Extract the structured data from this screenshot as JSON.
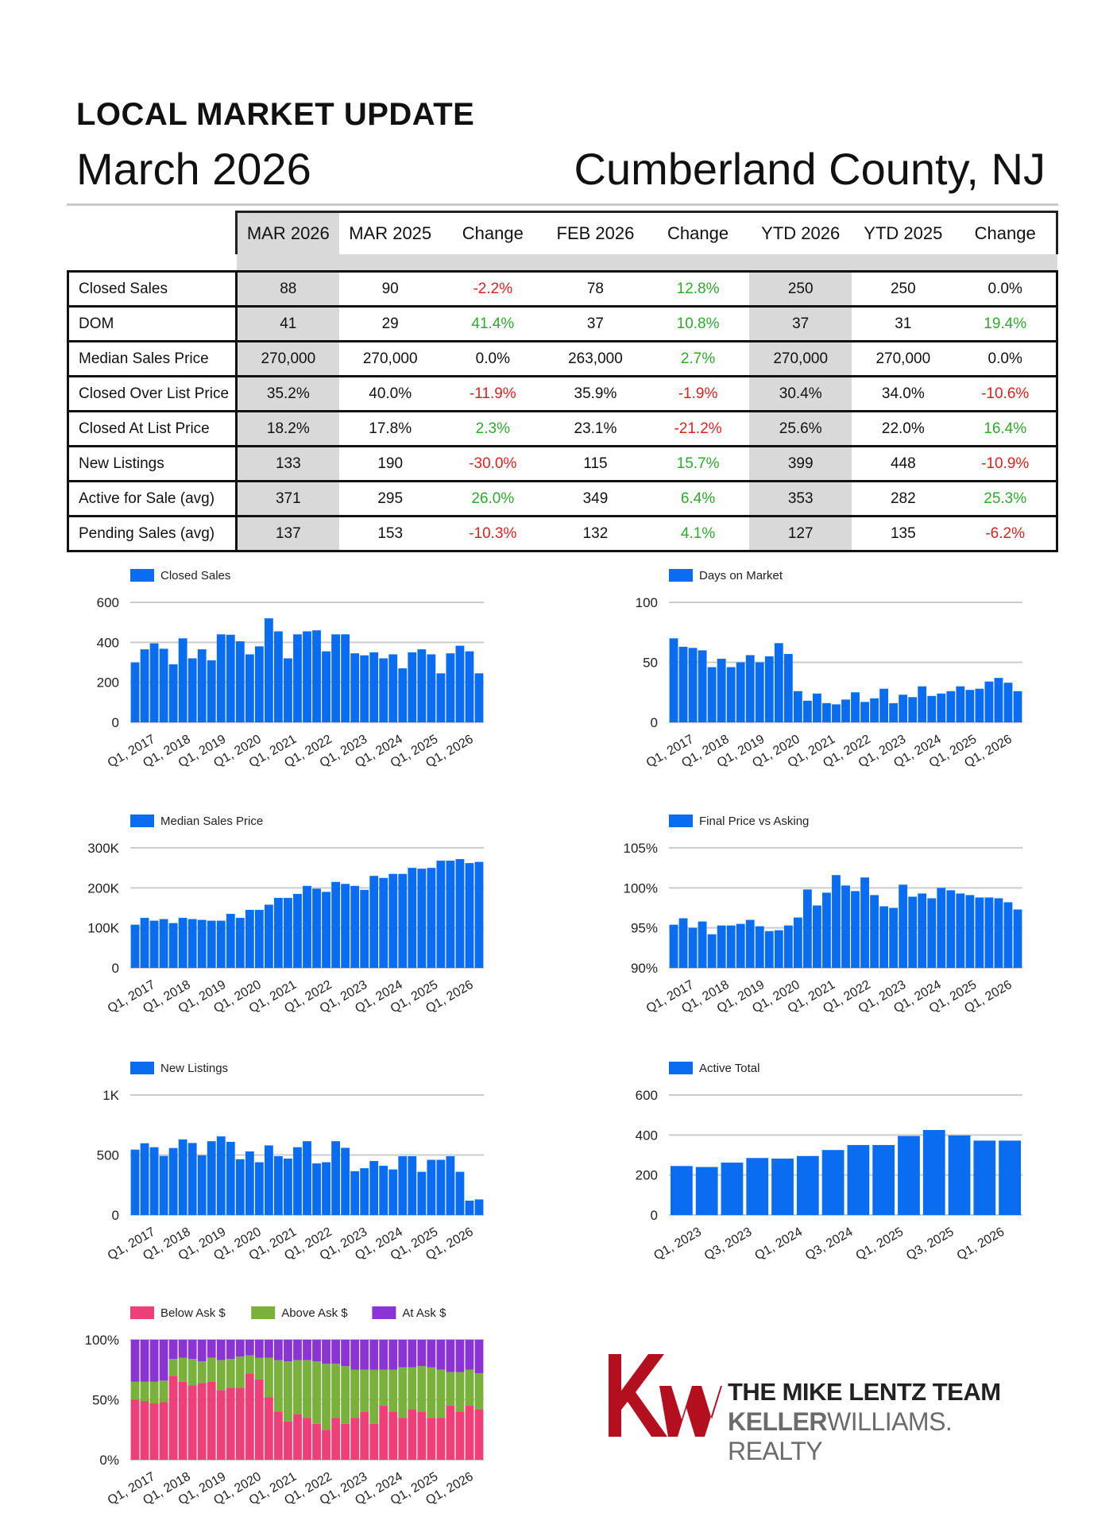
{
  "header": {
    "kicker": "LOCAL MARKET UPDATE",
    "month": "March 2026",
    "county": "Cumberland County, NJ"
  },
  "table": {
    "columns": [
      "MAR 2026",
      "MAR 2025",
      "Change",
      "FEB 2026",
      "Change",
      "YTD 2026",
      "YTD 2025",
      "Change"
    ],
    "rows": [
      {
        "label": "Closed Sales",
        "cells": [
          "88",
          "90",
          "-2.2%",
          "78",
          "12.8%",
          "250",
          "250",
          "0.0%"
        ]
      },
      {
        "label": "DOM",
        "cells": [
          "41",
          "29",
          "41.4%",
          "37",
          "10.8%",
          "37",
          "31",
          "19.4%"
        ]
      },
      {
        "label": "Median Sales Price",
        "cells": [
          "270,000",
          "270,000",
          "0.0%",
          "263,000",
          "2.7%",
          "270,000",
          "270,000",
          "0.0%"
        ]
      },
      {
        "label": "Closed Over List Price",
        "cells": [
          "35.2%",
          "40.0%",
          "-11.9%",
          "35.9%",
          "-1.9%",
          "30.4%",
          "34.0%",
          "-10.6%"
        ]
      },
      {
        "label": "Closed At List Price",
        "cells": [
          "18.2%",
          "17.8%",
          "2.3%",
          "23.1%",
          "-21.2%",
          "25.6%",
          "22.0%",
          "16.4%"
        ]
      },
      {
        "label": "New Listings",
        "cells": [
          "133",
          "190",
          "-30.0%",
          "115",
          "15.7%",
          "399",
          "448",
          "-10.9%"
        ]
      },
      {
        "label": "Active for Sale (avg)",
        "cells": [
          "371",
          "295",
          "26.0%",
          "349",
          "6.4%",
          "353",
          "282",
          "25.3%"
        ]
      },
      {
        "label": "Pending Sales (avg)",
        "cells": [
          "137",
          "153",
          "-10.3%",
          "132",
          "4.1%",
          "127",
          "135",
          "-6.2%"
        ]
      }
    ],
    "colors": {
      "positive": "#2fa82f",
      "negative": "#e02020",
      "neutral": "#111111",
      "shade": "#d9d9d9"
    }
  },
  "chart_data": [
    {
      "type": "bar",
      "legend": "Closed Sales",
      "color": "#0a6cf0",
      "x_labels": [
        "Q1, 2017",
        "Q1, 2018",
        "Q1, 2019",
        "Q1, 2020",
        "Q1, 2021",
        "Q1, 2022",
        "Q1, 2023",
        "Q1, 2024",
        "Q1, 2025",
        "Q1, 2026"
      ],
      "y_ticks": [
        {
          "v": 0,
          "t": "0"
        },
        {
          "v": 200,
          "t": "200"
        },
        {
          "v": 400,
          "t": "400"
        },
        {
          "v": 600,
          "t": "600"
        }
      ],
      "ylim": [
        0,
        600
      ],
      "values": [
        300,
        365,
        395,
        368,
        290,
        420,
        320,
        365,
        310,
        440,
        438,
        405,
        340,
        380,
        520,
        455,
        320,
        440,
        455,
        460,
        355,
        440,
        440,
        345,
        335,
        350,
        320,
        340,
        270,
        350,
        365,
        340,
        245,
        345,
        383,
        355,
        245
      ]
    },
    {
      "type": "bar",
      "legend": "Days on Market",
      "color": "#0a6cf0",
      "x_labels": [
        "Q1, 2017",
        "Q1, 2018",
        "Q1, 2019",
        "Q1, 2020",
        "Q1, 2021",
        "Q1, 2022",
        "Q1, 2023",
        "Q1, 2024",
        "Q1, 2025",
        "Q1, 2026"
      ],
      "y_ticks": [
        {
          "v": 0,
          "t": "0"
        },
        {
          "v": 50,
          "t": "50"
        },
        {
          "v": 100,
          "t": "100"
        }
      ],
      "ylim": [
        0,
        100
      ],
      "values": [
        70,
        63,
        62,
        60,
        46,
        53,
        46,
        50,
        56,
        50,
        55,
        66,
        57,
        26,
        18,
        24,
        16,
        15,
        19,
        25,
        17,
        20,
        28,
        16,
        23,
        21,
        30,
        22,
        24,
        26,
        30,
        27,
        28,
        34,
        37,
        33,
        26
      ]
    },
    {
      "type": "bar",
      "legend": "Median Sales Price",
      "color": "#0a6cf0",
      "x_labels": [
        "Q1, 2017",
        "Q1, 2018",
        "Q1, 2019",
        "Q1, 2020",
        "Q1, 2021",
        "Q1, 2022",
        "Q1, 2023",
        "Q1, 2024",
        "Q1, 2025",
        "Q1, 2026"
      ],
      "y_ticks": [
        {
          "v": 0,
          "t": "0"
        },
        {
          "v": 100,
          "t": "100K"
        },
        {
          "v": 200,
          "t": "200K"
        },
        {
          "v": 300,
          "t": "300K"
        }
      ],
      "ylim": [
        0,
        300
      ],
      "values": [
        108,
        125,
        118,
        122,
        112,
        125,
        122,
        120,
        118,
        118,
        135,
        125,
        145,
        145,
        158,
        175,
        175,
        185,
        205,
        198,
        190,
        215,
        210,
        205,
        195,
        230,
        225,
        235,
        235,
        250,
        248,
        250,
        268,
        268,
        272,
        262,
        265
      ]
    },
    {
      "type": "bar",
      "legend": "Final Price vs Asking",
      "color": "#0a6cf0",
      "x_labels": [
        "Q1, 2017",
        "Q1, 2018",
        "Q1, 2019",
        "Q1, 2020",
        "Q1, 2021",
        "Q1, 2022",
        "Q1, 2023",
        "Q1, 2024",
        "Q1, 2025",
        "Q1, 2026"
      ],
      "y_ticks": [
        {
          "v": 90,
          "t": "90%"
        },
        {
          "v": 95,
          "t": "95%"
        },
        {
          "v": 100,
          "t": "100%"
        },
        {
          "v": 105,
          "t": "105%"
        }
      ],
      "ylim": [
        90,
        105
      ],
      "values": [
        95.4,
        96.2,
        95.0,
        95.8,
        94.2,
        95.3,
        95.3,
        95.5,
        96.0,
        95.2,
        94.6,
        94.7,
        95.3,
        96.3,
        99.8,
        97.8,
        99.4,
        101.6,
        100.3,
        99.6,
        101.3,
        99.1,
        97.7,
        97.5,
        100.4,
        98.9,
        99.3,
        98.7,
        100.0,
        99.7,
        99.3,
        99.1,
        98.8,
        98.8,
        98.7,
        98.2,
        97.3
      ]
    },
    {
      "type": "bar",
      "legend": "New Listings",
      "color": "#0a6cf0",
      "x_labels": [
        "Q1, 2017",
        "Q1, 2018",
        "Q1, 2019",
        "Q1, 2020",
        "Q1, 2021",
        "Q1, 2022",
        "Q1, 2023",
        "Q1, 2024",
        "Q1, 2025",
        "Q1, 2026"
      ],
      "y_ticks": [
        {
          "v": 0,
          "t": "0"
        },
        {
          "v": 500,
          "t": "500"
        },
        {
          "v": 1000,
          "t": "1K"
        }
      ],
      "ylim": [
        0,
        1000
      ],
      "values": [
        545,
        598,
        565,
        492,
        558,
        630,
        600,
        498,
        615,
        655,
        610,
        465,
        530,
        440,
        580,
        490,
        470,
        565,
        615,
        430,
        440,
        615,
        560,
        365,
        390,
        450,
        410,
        380,
        490,
        490,
        360,
        460,
        460,
        490,
        360,
        120,
        130
      ]
    },
    {
      "type": "bar",
      "legend": "Active Total",
      "color": "#0a6cf0",
      "x_labels": [
        "Q1, 2023",
        "Q3, 2023",
        "Q1, 2024",
        "Q3, 2024",
        "Q1, 2025",
        "Q3, 2025",
        "Q1, 2026"
      ],
      "y_ticks": [
        {
          "v": 0,
          "t": "0"
        },
        {
          "v": 200,
          "t": "200"
        },
        {
          "v": 400,
          "t": "400"
        },
        {
          "v": 600,
          "t": "600"
        }
      ],
      "ylim": [
        0,
        600
      ],
      "values": [
        245,
        240,
        262,
        285,
        282,
        295,
        325,
        350,
        350,
        395,
        425,
        398,
        372,
        372
      ]
    },
    {
      "type": "stacked_bar",
      "legend": [
        "Below Ask $",
        "Above Ask $",
        "At Ask $"
      ],
      "colors": [
        "#ef3f78",
        "#79b13c",
        "#8a34d6"
      ],
      "x_labels": [
        "Q1, 2017",
        "Q1, 2018",
        "Q1, 2019",
        "Q1, 2020",
        "Q1, 2021",
        "Q1, 2022",
        "Q1, 2023",
        "Q1, 2024",
        "Q1, 2025",
        "Q1, 2026"
      ],
      "y_ticks": [
        {
          "v": 0,
          "t": "0%"
        },
        {
          "v": 50,
          "t": "50%"
        },
        {
          "v": 100,
          "t": "100%"
        }
      ],
      "ylim": [
        0,
        100
      ],
      "below": [
        50,
        49,
        47,
        48,
        70,
        65,
        62,
        64,
        65,
        58,
        60,
        60,
        72,
        67,
        52,
        40,
        32,
        38,
        35,
        30,
        25,
        35,
        30,
        35,
        40,
        30,
        45,
        40,
        35,
        42,
        40,
        35,
        35,
        45,
        40,
        45,
        42
      ],
      "above": [
        15,
        16,
        18,
        18,
        14,
        20,
        22,
        18,
        20,
        25,
        24,
        26,
        15,
        18,
        33,
        43,
        50,
        45,
        48,
        52,
        55,
        45,
        48,
        40,
        35,
        45,
        30,
        35,
        42,
        35,
        38,
        42,
        40,
        28,
        33,
        30,
        30
      ]
    }
  ],
  "logo": {
    "line1": "THE MIKE LENTZ TEAM",
    "line2a": "KELLER",
    "line2b": "WILLIAMS. REALTY",
    "brand_color": "#b40f1e"
  }
}
